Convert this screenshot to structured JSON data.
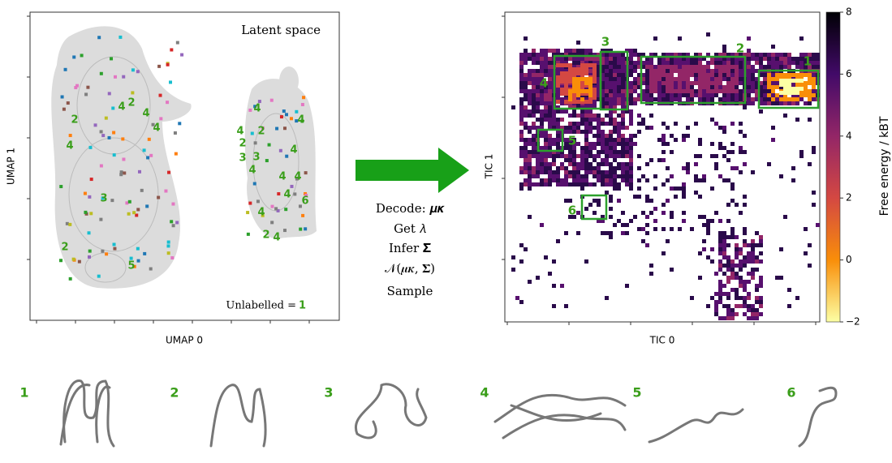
{
  "latent_panel": {
    "title": "Latent space",
    "xlabel": "UMAP 0",
    "ylabel": "UMAP 1",
    "note": "Unlabelled = ",
    "note_value": "1",
    "cluster_labels": [
      "4",
      "2",
      "4",
      "2",
      "4",
      "4",
      "3",
      "2",
      "5",
      "4",
      "4",
      "4",
      "2",
      "2",
      "3",
      "3",
      "4",
      "4",
      "4",
      "4",
      "4",
      "6",
      "4",
      "2",
      "4"
    ]
  },
  "arrow_text": [
    "Decode: 𝝁𝜿",
    "Get 𝜆",
    "Infer 𝚺̃",
    "𝒩(𝝁𝜿, 𝚺̃)",
    "Sample"
  ],
  "tic_panel": {
    "xlabel": "TIC 0",
    "ylabel": "TIC 1",
    "colorbar_label": "Free energy / kBT",
    "colorbar_lim": [
      -2,
      8
    ],
    "colorbar_ticks": [
      {
        "value": -2,
        "label": "−2"
      },
      0,
      2,
      4,
      6,
      8
    ],
    "box_labels": [
      "1",
      "2",
      "3",
      "4",
      "5",
      "6"
    ]
  },
  "structure_labels": [
    "1",
    "2",
    "3",
    "4",
    "5",
    "6"
  ]
}
